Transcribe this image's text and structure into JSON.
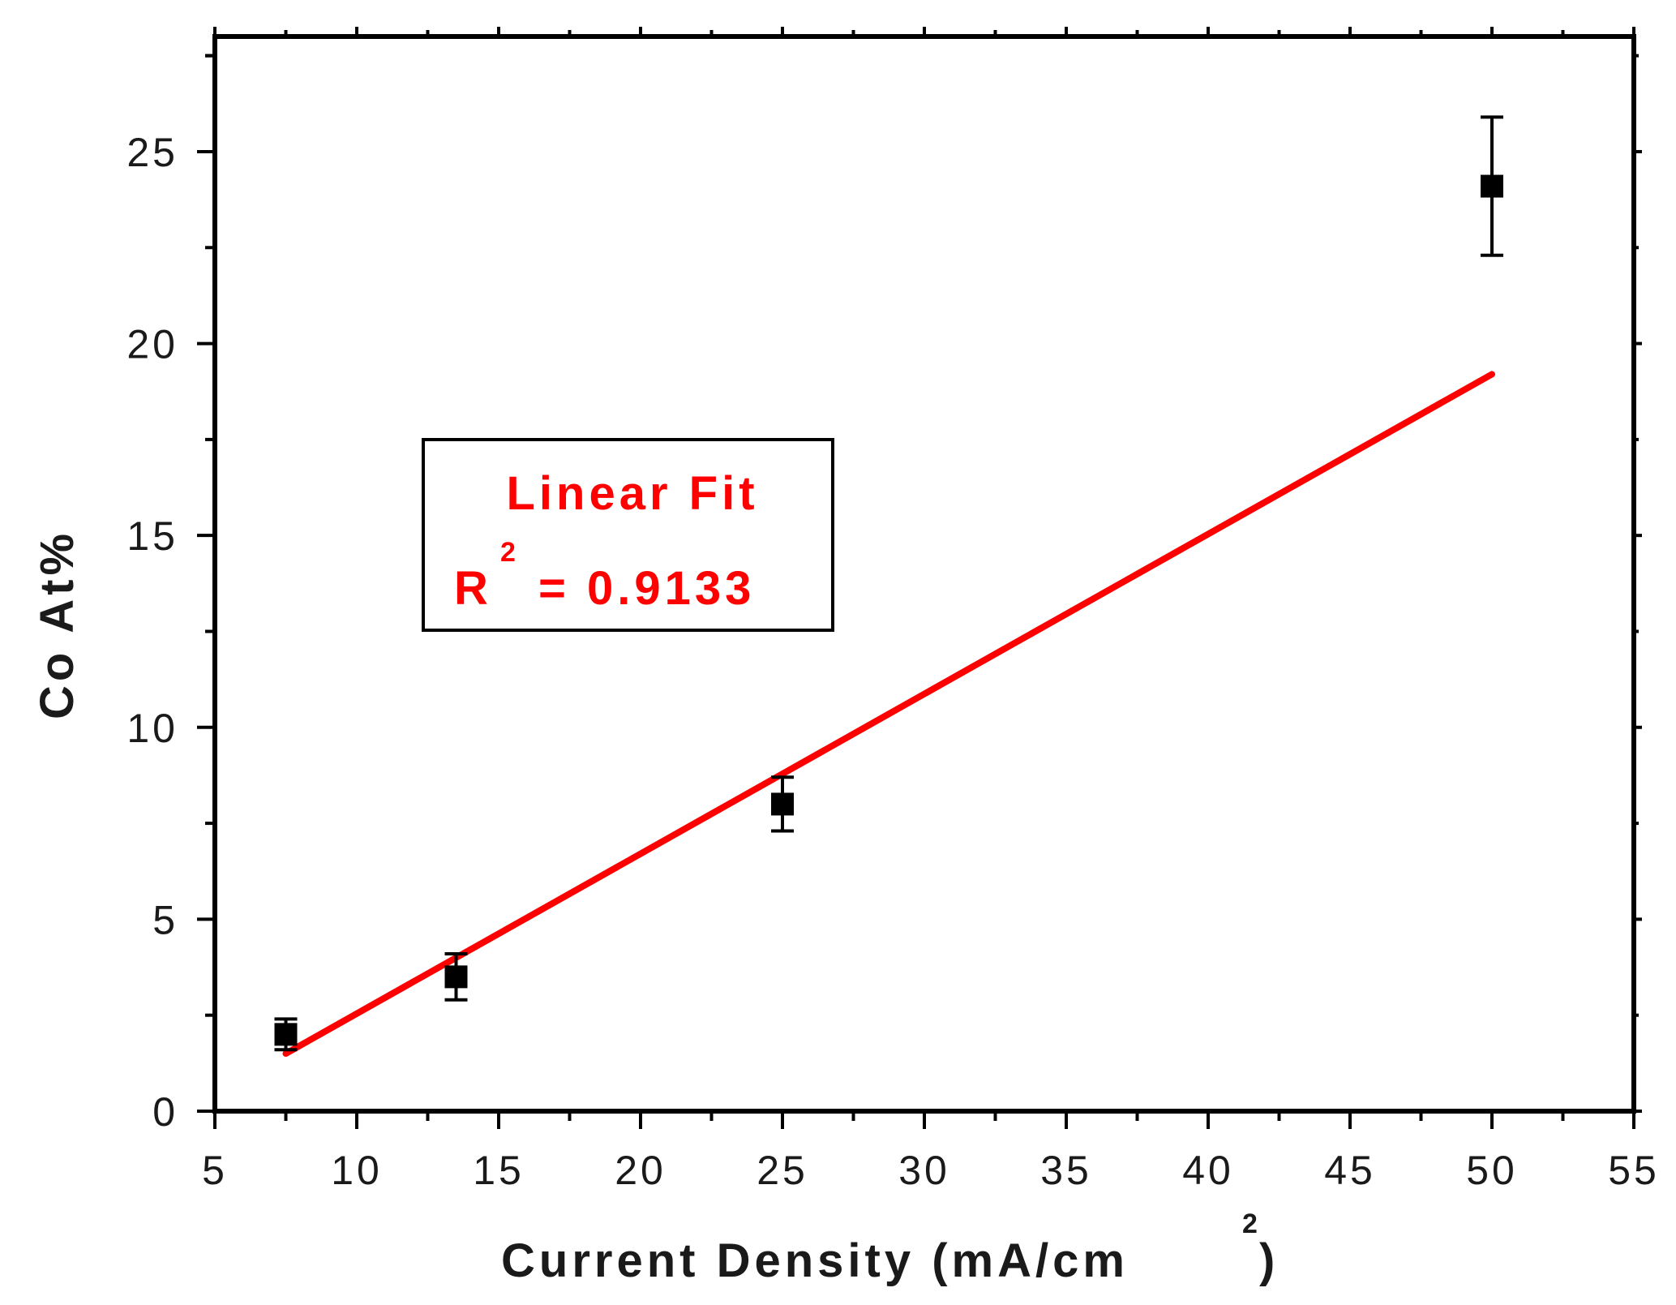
{
  "chart_data": {
    "type": "scatter",
    "xlabel": "Current Density (mA/cm",
    "xlabel_superscript": "2",
    "xlabel_suffix": ")",
    "ylabel": "Co At%",
    "xlim": [
      5,
      55
    ],
    "ylim": [
      0,
      28
    ],
    "xticks": [
      5,
      10,
      15,
      20,
      25,
      30,
      35,
      40,
      45,
      50,
      55
    ],
    "yticks": [
      0,
      5,
      10,
      15,
      20,
      25
    ],
    "grid": false,
    "series": [
      {
        "marker": "square",
        "color": "#000000",
        "points": [
          {
            "x": 7.5,
            "y": 2.0,
            "err": 0.4
          },
          {
            "x": 13.5,
            "y": 3.5,
            "err": 0.6
          },
          {
            "x": 25,
            "y": 8.0,
            "err": 0.7
          },
          {
            "x": 50,
            "y": 24.1,
            "err": 1.8
          }
        ]
      },
      {
        "type": "line",
        "color": "#ff0000",
        "x": [
          7.5,
          50
        ],
        "y": [
          1.5,
          19.2
        ]
      }
    ],
    "annotation": {
      "title": "Linear Fit",
      "r_label": "R",
      "r_superscript": "2",
      "r_value": "= 0.9133",
      "color": "#ff0000"
    }
  }
}
